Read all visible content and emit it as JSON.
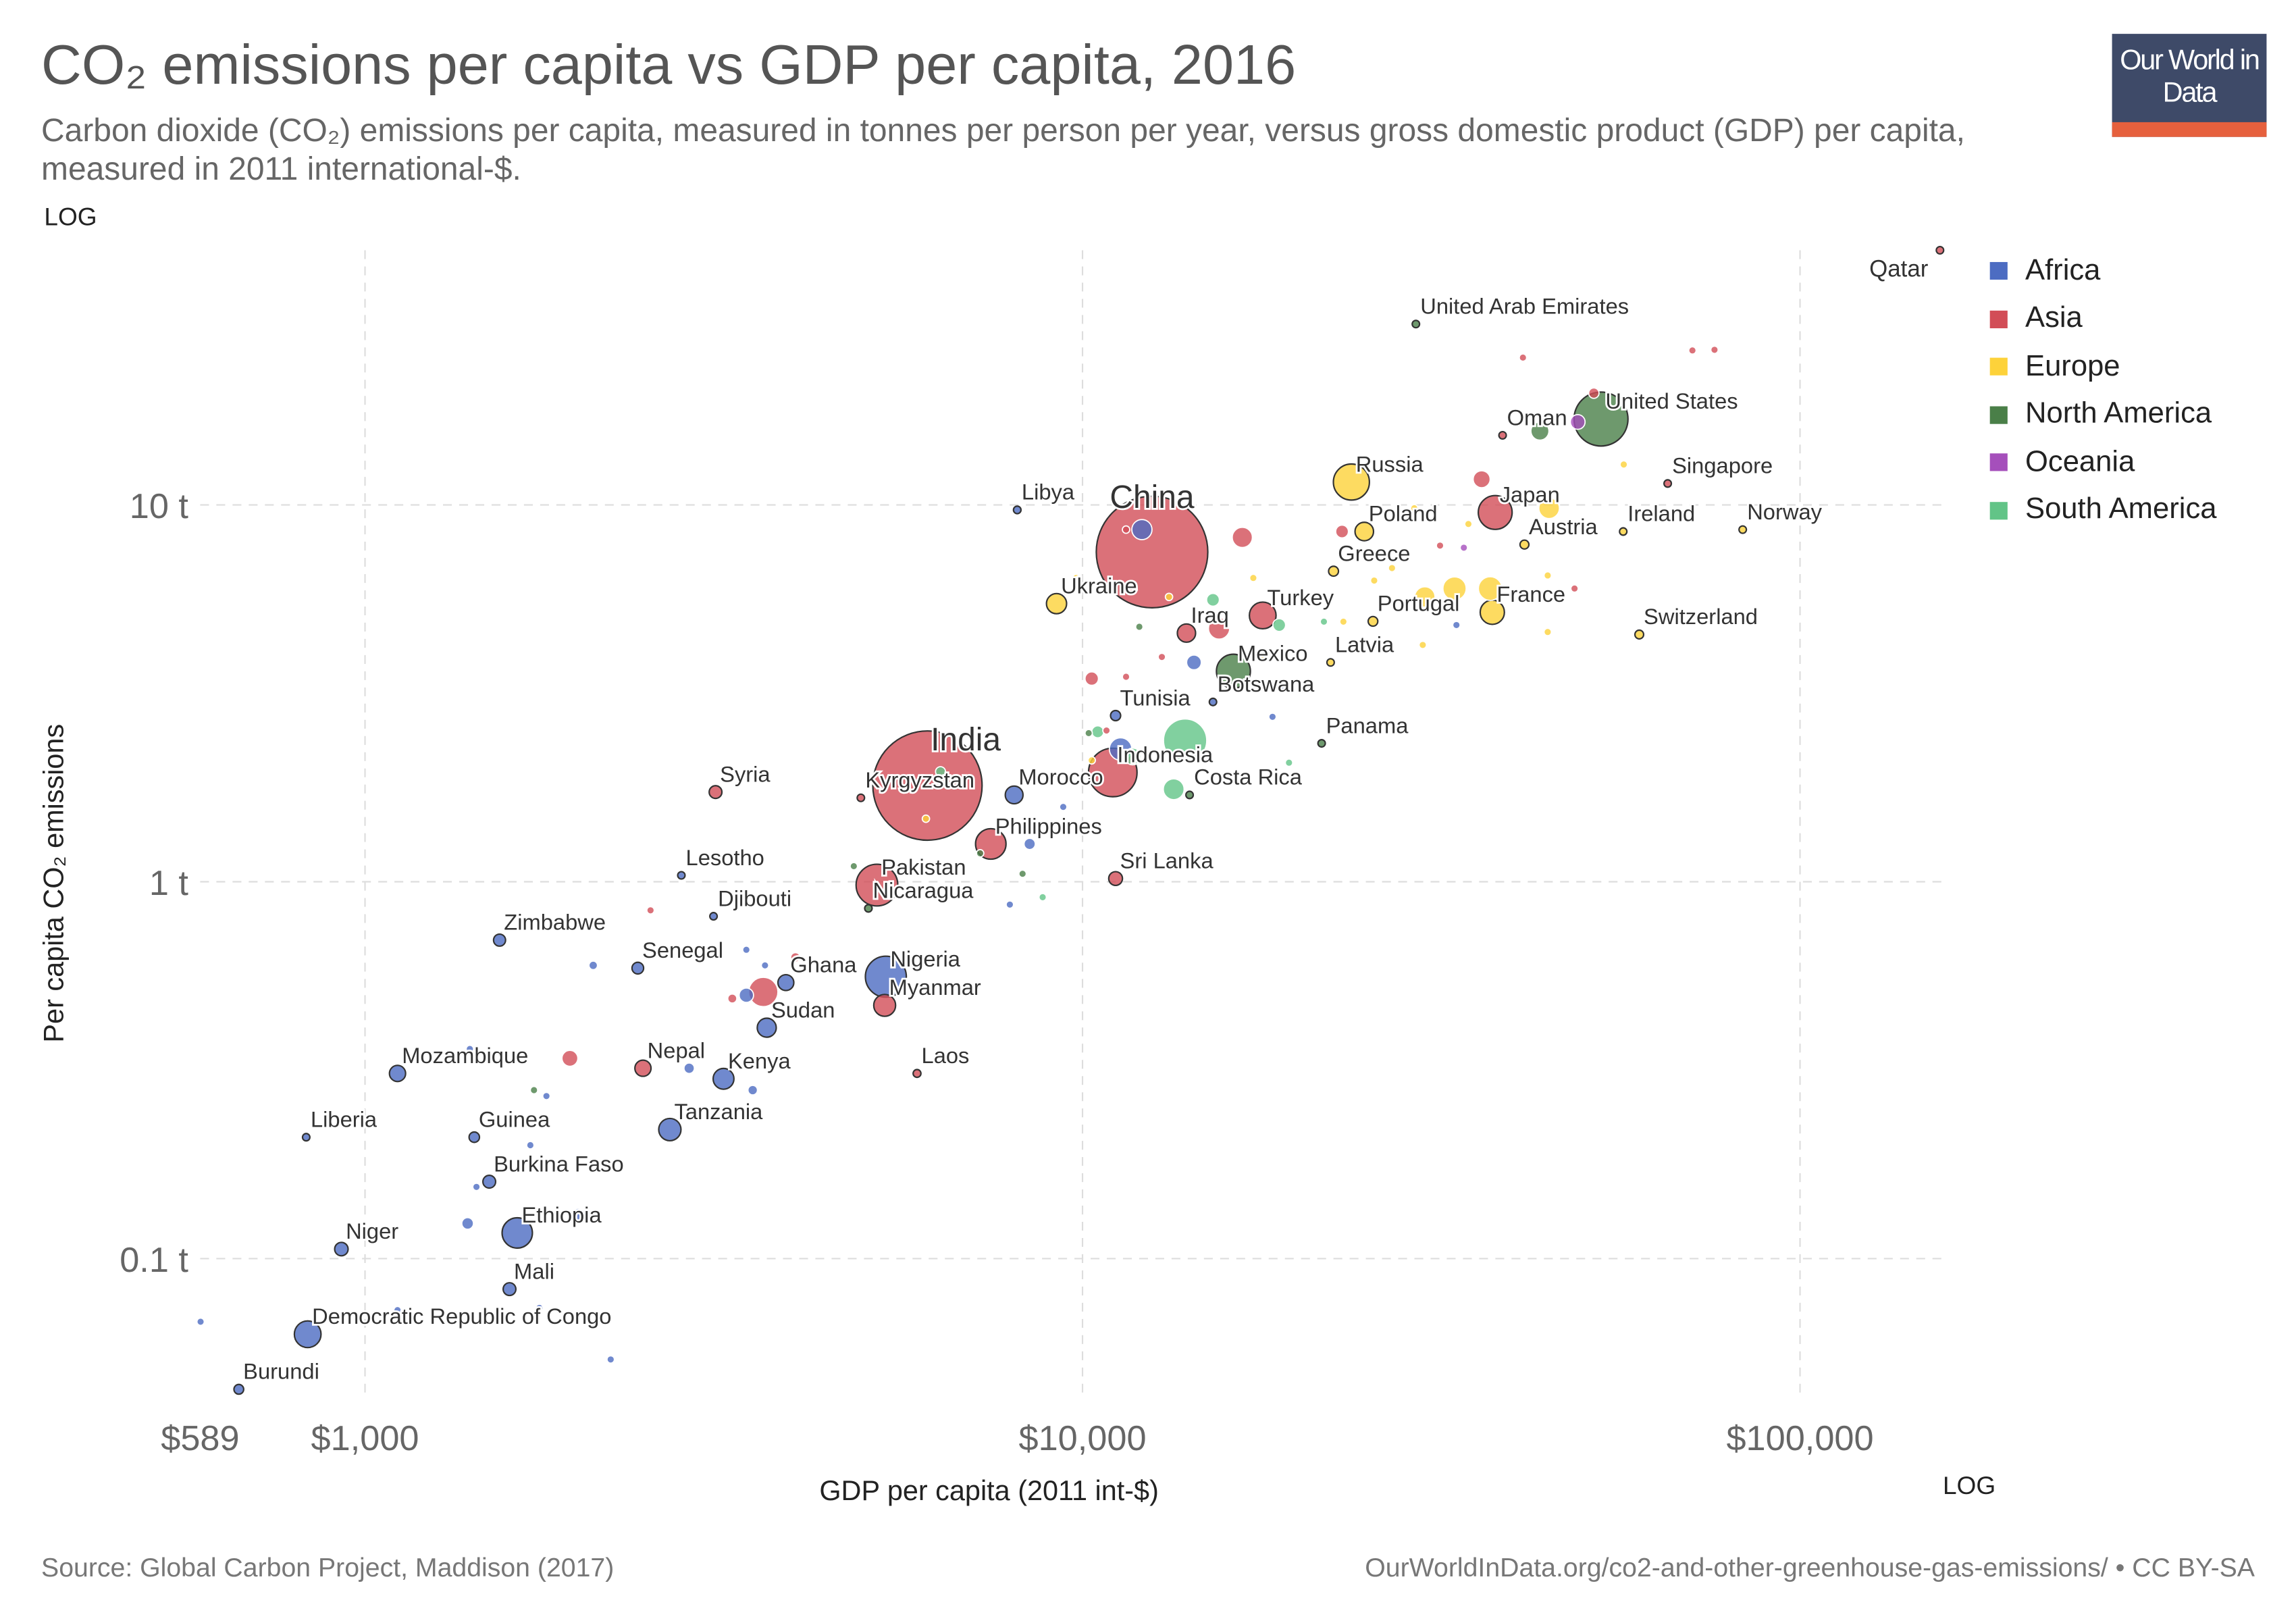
{
  "header": {
    "title": "CO₂ emissions per capita vs GDP per capita, 2016",
    "subtitle": "Carbon dioxide (CO₂) emissions per capita, measured in tonnes per person per year, versus gross domestic product (GDP) per capita, measured in 2011 international-$.",
    "logo_text": "Our World in Data"
  },
  "footer": {
    "source": "Source: Global Carbon Project, Maddison (2017)",
    "url": "OurWorldInData.org/co2-and-other-greenhouse-gas-emissions/ • CC BY-SA"
  },
  "chart_data": {
    "type": "scatter",
    "title": "CO₂ emissions per capita vs GDP per capita, 2016",
    "xlabel": "GDP per capita (2011 int-$)",
    "ylabel": "Per capita CO₂ emissions",
    "x_scale": "log",
    "y_scale": "log",
    "x_scale_label": "LOG",
    "y_scale_label": "LOG",
    "xlim": [
      589,
      160000
    ],
    "ylim": [
      0.043,
      55
    ],
    "x_ticks": [
      {
        "value": 589,
        "label": "$589"
      },
      {
        "value": 1000,
        "label": "$1,000"
      },
      {
        "value": 10000,
        "label": "$10,000"
      },
      {
        "value": 100000,
        "label": "$100,000"
      }
    ],
    "y_ticks": [
      {
        "value": 0.1,
        "label": "0.1 t"
      },
      {
        "value": 1,
        "label": "1 t"
      },
      {
        "value": 10,
        "label": "10 t"
      }
    ],
    "grid": true,
    "legend_position": "right",
    "size_encodes": "population",
    "legend": [
      {
        "name": "Africa",
        "color": "#4c6cc2"
      },
      {
        "name": "Asia",
        "color": "#d24d57"
      },
      {
        "name": "Europe",
        "color": "#fdd23a"
      },
      {
        "name": "North America",
        "color": "#4a7f48"
      },
      {
        "name": "Oceania",
        "color": "#a54fbb"
      },
      {
        "name": "South America",
        "color": "#62c487"
      }
    ],
    "points": [
      {
        "label": "Qatar",
        "region": "Asia",
        "gdp": 156700,
        "co2": 47.4,
        "pop": 2.6
      },
      {
        "label": "United Arab Emirates",
        "region": "North America",
        "gdp": 29150,
        "co2": 30.2,
        "pop": 1
      },
      {
        "label": "United States",
        "region": "North America",
        "gdp": 52800,
        "co2": 16.9,
        "pop": 323
      },
      {
        "label": "Oman",
        "region": "Asia",
        "gdp": 38500,
        "co2": 15.3,
        "pop": 4.4
      },
      {
        "label": "Russia",
        "region": "Europe",
        "gdp": 23700,
        "co2": 11.5,
        "pop": 144
      },
      {
        "label": "Singapore",
        "region": "Asia",
        "gdp": 65400,
        "co2": 11.4,
        "pop": 5.6
      },
      {
        "label": "Japan",
        "region": "Asia",
        "gdp": 37600,
        "co2": 9.55,
        "pop": 127
      },
      {
        "label": "Poland",
        "region": "Europe",
        "gdp": 24700,
        "co2": 8.5,
        "pop": 38
      },
      {
        "label": "China",
        "region": "Asia",
        "gdp": 12500,
        "co2": 7.5,
        "pop": 1380
      },
      {
        "label": "Libya",
        "region": "Africa",
        "gdp": 8110,
        "co2": 9.7,
        "pop": 6.3
      },
      {
        "label": "Ireland",
        "region": "Europe",
        "gdp": 56700,
        "co2": 8.5,
        "pop": 4.8
      },
      {
        "label": "Norway",
        "region": "Europe",
        "gdp": 83200,
        "co2": 8.6,
        "pop": 5.2
      },
      {
        "label": "Austria",
        "region": "Europe",
        "gdp": 41300,
        "co2": 7.85,
        "pop": 8.7
      },
      {
        "label": "Greece",
        "region": "Europe",
        "gdp": 22380,
        "co2": 6.67,
        "pop": 10.8
      },
      {
        "label": "Ukraine",
        "region": "Europe",
        "gdp": 9200,
        "co2": 5.47,
        "pop": 45
      },
      {
        "label": "France",
        "region": "Europe",
        "gdp": 37250,
        "co2": 5.19,
        "pop": 65
      },
      {
        "label": "Turkey",
        "region": "Asia",
        "gdp": 17830,
        "co2": 5.09,
        "pop": 79
      },
      {
        "label": "Portugal",
        "region": "Europe",
        "gdp": 25400,
        "co2": 4.91,
        "pop": 10.3
      },
      {
        "label": "Iraq",
        "region": "Asia",
        "gdp": 13960,
        "co2": 4.57,
        "pop": 37
      },
      {
        "label": "Switzerland",
        "region": "Europe",
        "gdp": 59700,
        "co2": 4.53,
        "pop": 8.4
      },
      {
        "label": "Mexico",
        "region": "North America",
        "gdp": 16230,
        "co2": 3.62,
        "pop": 128
      },
      {
        "label": "Latvia",
        "region": "Europe",
        "gdp": 22170,
        "co2": 3.82,
        "pop": 2
      },
      {
        "label": "Botswana",
        "region": "Africa",
        "gdp": 15200,
        "co2": 3.0,
        "pop": 2.2
      },
      {
        "label": "Tunisia",
        "region": "Africa",
        "gdp": 11120,
        "co2": 2.76,
        "pop": 11.4
      },
      {
        "label": "Panama",
        "region": "North America",
        "gdp": 21540,
        "co2": 2.33,
        "pop": 4
      },
      {
        "label": "India",
        "region": "Asia",
        "gdp": 6080,
        "co2": 1.8,
        "pop": 1324
      },
      {
        "label": "Indonesia",
        "region": "Asia",
        "gdp": 11020,
        "co2": 1.95,
        "pop": 261
      },
      {
        "label": "Syria",
        "region": "Asia",
        "gdp": 3080,
        "co2": 1.73,
        "pop": 18
      },
      {
        "label": "Kyrgyzstan",
        "region": "Asia",
        "gdp": 4910,
        "co2": 1.67,
        "pop": 6
      },
      {
        "label": "Morocco",
        "region": "Africa",
        "gdp": 8030,
        "co2": 1.7,
        "pop": 35
      },
      {
        "label": "Costa Rica",
        "region": "North America",
        "gdp": 14100,
        "co2": 1.7,
        "pop": 4.9
      },
      {
        "label": "Philippines",
        "region": "Asia",
        "gdp": 7450,
        "co2": 1.26,
        "pop": 103
      },
      {
        "label": "Pakistan",
        "region": "Asia",
        "gdp": 5170,
        "co2": 0.98,
        "pop": 193
      },
      {
        "label": "Sri Lanka",
        "region": "Asia",
        "gdp": 11120,
        "co2": 1.02,
        "pop": 21
      },
      {
        "label": "Lesotho",
        "region": "Africa",
        "gdp": 2760,
        "co2": 1.04,
        "pop": 2.2
      },
      {
        "label": "Djibouti",
        "region": "Africa",
        "gdp": 3060,
        "co2": 0.81,
        "pop": 0.9
      },
      {
        "label": "Nicaragua",
        "region": "North America",
        "gdp": 5030,
        "co2": 0.85,
        "pop": 6.1
      },
      {
        "label": "Zimbabwe",
        "region": "Africa",
        "gdp": 1540,
        "co2": 0.7,
        "pop": 16
      },
      {
        "label": "Senegal",
        "region": "Africa",
        "gdp": 2400,
        "co2": 0.59,
        "pop": 15
      },
      {
        "label": "Ghana",
        "region": "Africa",
        "gdp": 3860,
        "co2": 0.54,
        "pop": 28
      },
      {
        "label": "Nigeria",
        "region": "Africa",
        "gdp": 5320,
        "co2": 0.56,
        "pop": 186
      },
      {
        "label": "Myanmar",
        "region": "Asia",
        "gdp": 5300,
        "co2": 0.47,
        "pop": 53
      },
      {
        "label": "Sudan",
        "region": "Africa",
        "gdp": 3630,
        "co2": 0.41,
        "pop": 40
      },
      {
        "label": "Mozambique",
        "region": "Africa",
        "gdp": 1110,
        "co2": 0.31,
        "pop": 29
      },
      {
        "label": "Nepal",
        "region": "Asia",
        "gdp": 2440,
        "co2": 0.32,
        "pop": 29
      },
      {
        "label": "Kenya",
        "region": "Africa",
        "gdp": 3160,
        "co2": 0.3,
        "pop": 48
      },
      {
        "label": "Laos",
        "region": "Asia",
        "gdp": 5880,
        "co2": 0.31,
        "pop": 6.8
      },
      {
        "label": "Tanzania",
        "region": "Africa",
        "gdp": 2660,
        "co2": 0.22,
        "pop": 55
      },
      {
        "label": "Liberia",
        "region": "Africa",
        "gdp": 828,
        "co2": 0.21,
        "pop": 4.6
      },
      {
        "label": "Guinea",
        "region": "Africa",
        "gdp": 1420,
        "co2": 0.21,
        "pop": 12
      },
      {
        "label": "Burkina Faso",
        "region": "Africa",
        "gdp": 1490,
        "co2": 0.16,
        "pop": 18
      },
      {
        "label": "Ethiopia",
        "region": "Africa",
        "gdp": 1630,
        "co2": 0.117,
        "pop": 102
      },
      {
        "label": "Niger",
        "region": "Africa",
        "gdp": 927,
        "co2": 0.106,
        "pop": 20
      },
      {
        "label": "Mali",
        "region": "Africa",
        "gdp": 1590,
        "co2": 0.083,
        "pop": 18
      },
      {
        "label": "Democratic Republic of Congo",
        "region": "Africa",
        "gdp": 832,
        "co2": 0.063,
        "pop": 79
      },
      {
        "label": "Burundi",
        "region": "Africa",
        "gdp": 667,
        "co2": 0.045,
        "pop": 10.5
      },
      {
        "region": "Asia",
        "gdp": 41100,
        "co2": 24.6,
        "pop": 1
      },
      {
        "region": "Asia",
        "gdp": 70800,
        "co2": 25.7,
        "pop": 1
      },
      {
        "region": "Asia",
        "gdp": 76000,
        "co2": 25.8,
        "pop": 4
      },
      {
        "region": "Asia",
        "gdp": 51600,
        "co2": 19.8,
        "pop": 12
      },
      {
        "region": "Asia",
        "gdp": 36000,
        "co2": 11.7,
        "pop": 32
      },
      {
        "region": "Asia",
        "gdp": 16700,
        "co2": 8.2,
        "pop": 45
      },
      {
        "region": "Asia",
        "gdp": 23000,
        "co2": 8.5,
        "pop": 18
      },
      {
        "region": "Asia",
        "gdp": 31500,
        "co2": 7.8,
        "pop": 2
      },
      {
        "region": "Asia",
        "gdp": 48500,
        "co2": 6.0,
        "pop": 1
      },
      {
        "region": "Asia",
        "gdp": 15500,
        "co2": 4.7,
        "pop": 50
      },
      {
        "region": "Asia",
        "gdp": 10300,
        "co2": 3.46,
        "pop": 20
      },
      {
        "region": "Asia",
        "gdp": 11500,
        "co2": 3.5,
        "pop": 3
      },
      {
        "region": "Asia",
        "gdp": 12900,
        "co2": 3.95,
        "pop": 3
      },
      {
        "region": "Asia",
        "gdp": 10800,
        "co2": 2.52,
        "pop": 2
      },
      {
        "region": "Asia",
        "gdp": 3250,
        "co2": 0.49,
        "pop": 9
      },
      {
        "region": "Asia",
        "gdp": 3980,
        "co2": 0.63,
        "pop": 10
      },
      {
        "region": "Asia",
        "gdp": 3590,
        "co2": 0.51,
        "pop": 95
      },
      {
        "region": "Asia",
        "gdp": 1930,
        "co2": 0.34,
        "pop": 28
      },
      {
        "region": "Asia",
        "gdp": 2500,
        "co2": 0.84,
        "pop": 1
      },
      {
        "region": "Asia",
        "gdp": 11500,
        "co2": 8.6,
        "pop": 3
      },
      {
        "region": "Europe",
        "gdp": 56800,
        "co2": 12.8,
        "pop": 2
      },
      {
        "region": "Europe",
        "gdp": 44700,
        "co2": 9.8,
        "pop": 47
      },
      {
        "region": "Europe",
        "gdp": 34500,
        "co2": 8.9,
        "pop": 2
      },
      {
        "region": "Europe",
        "gdp": 44500,
        "co2": 6.5,
        "pop": 2
      },
      {
        "region": "Europe",
        "gdp": 29000,
        "co2": 9.8,
        "pop": 1
      },
      {
        "region": "Europe",
        "gdp": 27000,
        "co2": 6.8,
        "pop": 2
      },
      {
        "region": "Europe",
        "gdp": 25500,
        "co2": 6.3,
        "pop": 3
      },
      {
        "region": "Europe",
        "gdp": 17300,
        "co2": 6.4,
        "pop": 3
      },
      {
        "region": "Europe",
        "gdp": 30000,
        "co2": 5.7,
        "pop": 46
      },
      {
        "region": "Europe",
        "gdp": 33000,
        "co2": 6.0,
        "pop": 60
      },
      {
        "region": "Europe",
        "gdp": 37000,
        "co2": 6.0,
        "pop": 62
      },
      {
        "region": "Europe",
        "gdp": 44500,
        "co2": 4.6,
        "pop": 3
      },
      {
        "region": "Europe",
        "gdp": 23100,
        "co2": 4.9,
        "pop": 3
      },
      {
        "region": "Europe",
        "gdp": 29800,
        "co2": 4.25,
        "pop": 2
      },
      {
        "region": "Europe",
        "gdp": 13200,
        "co2": 5.7,
        "pop": 3
      },
      {
        "region": "Europe",
        "gdp": 17800,
        "co2": 4.0,
        "pop": 4
      },
      {
        "region": "Europe",
        "gdp": 9800,
        "co2": 6.4,
        "pop": 3
      },
      {
        "region": "Europe",
        "gdp": 6050,
        "co2": 1.47,
        "pop": 4
      },
      {
        "region": "Europe",
        "gdp": 10300,
        "co2": 2.1,
        "pop": 3
      },
      {
        "region": "North America",
        "gdp": 43400,
        "co2": 15.7,
        "pop": 36
      },
      {
        "region": "North America",
        "gdp": 12000,
        "co2": 4.75,
        "pop": 1
      },
      {
        "region": "North America",
        "gdp": 10200,
        "co2": 2.48,
        "pop": 1
      },
      {
        "region": "North America",
        "gdp": 4800,
        "co2": 1.1,
        "pop": 2
      },
      {
        "region": "North America",
        "gdp": 7200,
        "co2": 1.19,
        "pop": 6
      },
      {
        "region": "North America",
        "gdp": 8250,
        "co2": 1.05,
        "pop": 3
      },
      {
        "region": "North America",
        "gdp": 1720,
        "co2": 0.28,
        "pop": 3
      },
      {
        "region": "North America",
        "gdp": 14600,
        "co2": 2.15,
        "pop": 3
      },
      {
        "region": "South America",
        "gdp": 13900,
        "co2": 2.37,
        "pop": 207
      },
      {
        "region": "South America",
        "gdp": 13400,
        "co2": 1.76,
        "pop": 48
      },
      {
        "region": "South America",
        "gdp": 15200,
        "co2": 5.6,
        "pop": 18
      },
      {
        "region": "South America",
        "gdp": 18800,
        "co2": 4.8,
        "pop": 18
      },
      {
        "region": "South America",
        "gdp": 21700,
        "co2": 4.9,
        "pop": 3
      },
      {
        "region": "South America",
        "gdp": 11750,
        "co2": 2.15,
        "pop": 31
      },
      {
        "region": "South America",
        "gdp": 10500,
        "co2": 2.5,
        "pop": 16
      },
      {
        "region": "South America",
        "gdp": 19400,
        "co2": 2.07,
        "pop": 3
      },
      {
        "region": "South America",
        "gdp": 8800,
        "co2": 0.91,
        "pop": 6
      },
      {
        "region": "South America",
        "gdp": 6340,
        "co2": 1.96,
        "pop": 11
      },
      {
        "region": "Oceania",
        "gdp": 49000,
        "co2": 16.6,
        "pop": 24
      },
      {
        "region": "Oceania",
        "gdp": 34000,
        "co2": 7.7,
        "pop": 5
      },
      {
        "region": "Africa",
        "gdp": 12100,
        "co2": 8.6,
        "pop": 45
      },
      {
        "region": "Africa",
        "gdp": 14300,
        "co2": 3.82,
        "pop": 24
      },
      {
        "region": "Africa",
        "gdp": 18400,
        "co2": 2.74,
        "pop": 1
      },
      {
        "region": "Africa",
        "gdp": 18900,
        "co2": 3.3,
        "pop": 1
      },
      {
        "region": "Africa",
        "gdp": 33200,
        "co2": 4.8,
        "pop": 1
      },
      {
        "region": "Africa",
        "gdp": 11300,
        "co2": 2.25,
        "pop": 56
      },
      {
        "region": "Africa",
        "gdp": 9400,
        "co2": 1.58,
        "pop": 1
      },
      {
        "region": "Africa",
        "gdp": 8440,
        "co2": 1.26,
        "pop": 14
      },
      {
        "region": "Africa",
        "gdp": 7920,
        "co2": 0.87,
        "pop": 2
      },
      {
        "region": "Africa",
        "gdp": 3400,
        "co2": 0.66,
        "pop": 5
      },
      {
        "region": "Africa",
        "gdp": 2080,
        "co2": 0.6,
        "pop": 8
      },
      {
        "region": "Africa",
        "gdp": 3610,
        "co2": 0.6,
        "pop": 2
      },
      {
        "region": "Africa",
        "gdp": 3400,
        "co2": 0.5,
        "pop": 23
      },
      {
        "region": "Africa",
        "gdp": 2830,
        "co2": 0.32,
        "pop": 12
      },
      {
        "region": "Africa",
        "gdp": 3470,
        "co2": 0.28,
        "pop": 10
      },
      {
        "region": "Africa",
        "gdp": 1790,
        "co2": 0.27,
        "pop": 2
      },
      {
        "region": "Africa",
        "gdp": 1400,
        "co2": 0.36,
        "pop": 3
      },
      {
        "region": "Africa",
        "gdp": 1700,
        "co2": 0.2,
        "pop": 2
      },
      {
        "region": "Africa",
        "gdp": 1430,
        "co2": 0.155,
        "pop": 2
      },
      {
        "region": "Africa",
        "gdp": 1980,
        "co2": 0.13,
        "pop": 24
      },
      {
        "region": "Africa",
        "gdp": 1390,
        "co2": 0.124,
        "pop": 15
      },
      {
        "region": "Africa",
        "gdp": 1750,
        "co2": 0.074,
        "pop": 2
      },
      {
        "region": "Africa",
        "gdp": 1110,
        "co2": 0.073,
        "pop": 2
      },
      {
        "region": "Africa",
        "gdp": 2200,
        "co2": 0.054,
        "pop": 4
      },
      {
        "region": "Africa",
        "gdp": 590,
        "co2": 0.068,
        "pop": 4
      }
    ]
  }
}
